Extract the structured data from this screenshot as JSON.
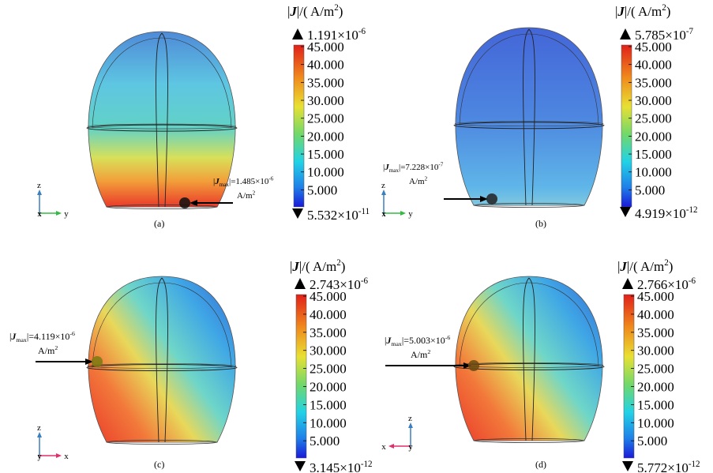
{
  "colorbar_title": {
    "open": "|",
    "symbol": "J",
    "close": "|/( A/m",
    "exp": "2",
    "end": ")"
  },
  "colorbar_ticks": [
    "45.000",
    "40.000",
    "35.000",
    "30.000",
    "25.000",
    "20.000",
    "15.000",
    "10.000",
    "5.000"
  ],
  "panels": [
    {
      "caption": "(a)",
      "max": {
        "mantissa": "1.191×10",
        "exp": "-6"
      },
      "min": {
        "mantissa": "5.532×10",
        "exp": "-11"
      },
      "annotation": {
        "open": "|",
        "symbol": "J",
        "sub": "max",
        "value": "|=1.485×10",
        "exp": "-6",
        "unit": "A/m",
        "unit_exp": "2"
      },
      "axes": {
        "up": "z",
        "side": "y",
        "depth": "x"
      }
    },
    {
      "caption": "(b)",
      "max": {
        "mantissa": "5.785×10",
        "exp": "-7"
      },
      "min": {
        "mantissa": "4.919×10",
        "exp": "-12"
      },
      "annotation": {
        "open": "|",
        "symbol": "J",
        "sub": "max",
        "value": "|=7.228×10",
        "exp": "-7",
        "unit": "A/m",
        "unit_exp": "2"
      },
      "axes": {
        "up": "z",
        "side": "y",
        "depth": "x"
      }
    },
    {
      "caption": "(c)",
      "max": {
        "mantissa": "2.743×10",
        "exp": "-6"
      },
      "min": {
        "mantissa": "3.145×10",
        "exp": "-12"
      },
      "annotation": {
        "open": "|",
        "symbol": "J",
        "sub": "max",
        "value": "|=4.119×10",
        "exp": "-6",
        "unit": "A/m",
        "unit_exp": "2"
      },
      "axes": {
        "up": "z",
        "side": "x",
        "depth": "y"
      }
    },
    {
      "caption": "(d)",
      "max": {
        "mantissa": "2.766×10",
        "exp": "-6"
      },
      "min": {
        "mantissa": "5.772×10",
        "exp": "-12"
      },
      "annotation": {
        "open": "|",
        "symbol": "J",
        "sub": "max",
        "value": "|=5.003×10",
        "exp": "-6",
        "unit": "A/m",
        "unit_exp": "2"
      },
      "axes": {
        "up": "z",
        "side": "x",
        "depth": "y"
      }
    }
  ]
}
